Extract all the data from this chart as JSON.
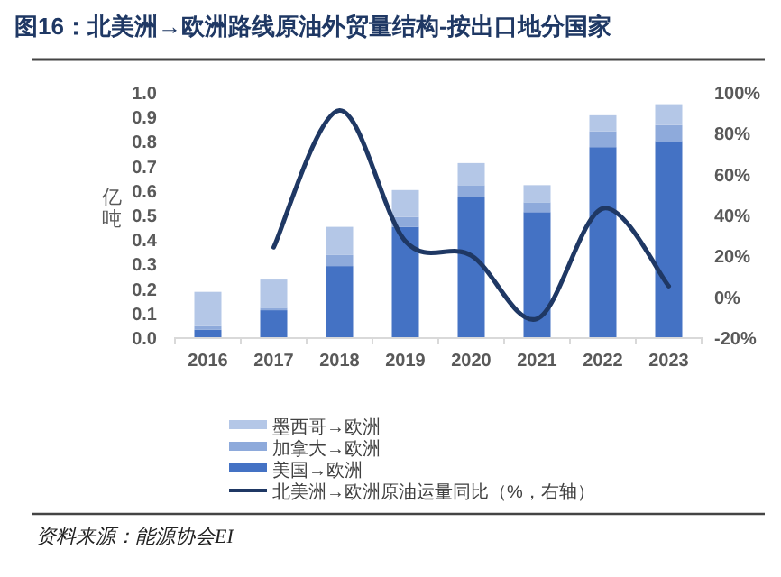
{
  "chart_data": {
    "type": "bar",
    "title": "图16：北美洲→欧洲路线原油外贸量结构-按出口地分国家",
    "ylabel": "亿吨",
    "categories": [
      "2016",
      "2017",
      "2018",
      "2019",
      "2020",
      "2021",
      "2022",
      "2023"
    ],
    "stacked": true,
    "legend": "bottom",
    "ylim": [
      0,
      1.0
    ],
    "yticks": [
      {
        "value": 0,
        "label": "0.0"
      },
      {
        "value": 0.1,
        "label": "0.1"
      },
      {
        "value": 0.2,
        "label": "0.2"
      },
      {
        "value": 0.3,
        "label": "0.3"
      },
      {
        "value": 0.4,
        "label": "0.4"
      },
      {
        "value": 0.5,
        "label": "0.5"
      },
      {
        "value": 0.6,
        "label": "0.6"
      },
      {
        "value": 0.7,
        "label": "0.7"
      },
      {
        "value": 0.8,
        "label": "0.8"
      },
      {
        "value": 0.9,
        "label": "0.9"
      },
      {
        "value": 1.0,
        "label": "1.0"
      }
    ],
    "y2lim": [
      -20,
      100
    ],
    "y2ticks": [
      {
        "value": -20,
        "label": "-20%"
      },
      {
        "value": 0,
        "label": "0%"
      },
      {
        "value": 20,
        "label": "20%"
      },
      {
        "value": 40,
        "label": "40%"
      },
      {
        "value": 60,
        "label": "60%"
      },
      {
        "value": 80,
        "label": "80%"
      },
      {
        "value": 100,
        "label": "100%"
      }
    ],
    "series": [
      {
        "name": "美国→欧洲",
        "color": "#4472c4",
        "values": [
          0.03,
          0.11,
          0.29,
          0.45,
          0.57,
          0.51,
          0.775,
          0.8
        ]
      },
      {
        "name": "加拿大→欧洲",
        "color": "#8eaadb",
        "values": [
          0.015,
          0.01,
          0.045,
          0.04,
          0.05,
          0.04,
          0.065,
          0.065
        ]
      },
      {
        "name": "墨西哥→欧洲",
        "color": "#b4c7e7",
        "values": [
          0.14,
          0.115,
          0.115,
          0.11,
          0.09,
          0.07,
          0.065,
          0.085
        ]
      },
      {
        "name": "北美洲→欧洲原油运量同比（%，右轴）",
        "type": "line",
        "axis": "y2",
        "color": "#1f3864",
        "values": [
          null,
          24,
          91,
          27,
          20,
          -11,
          43,
          5
        ]
      }
    ],
    "annotations": [
      "资料来源：能源协会EI"
    ]
  }
}
